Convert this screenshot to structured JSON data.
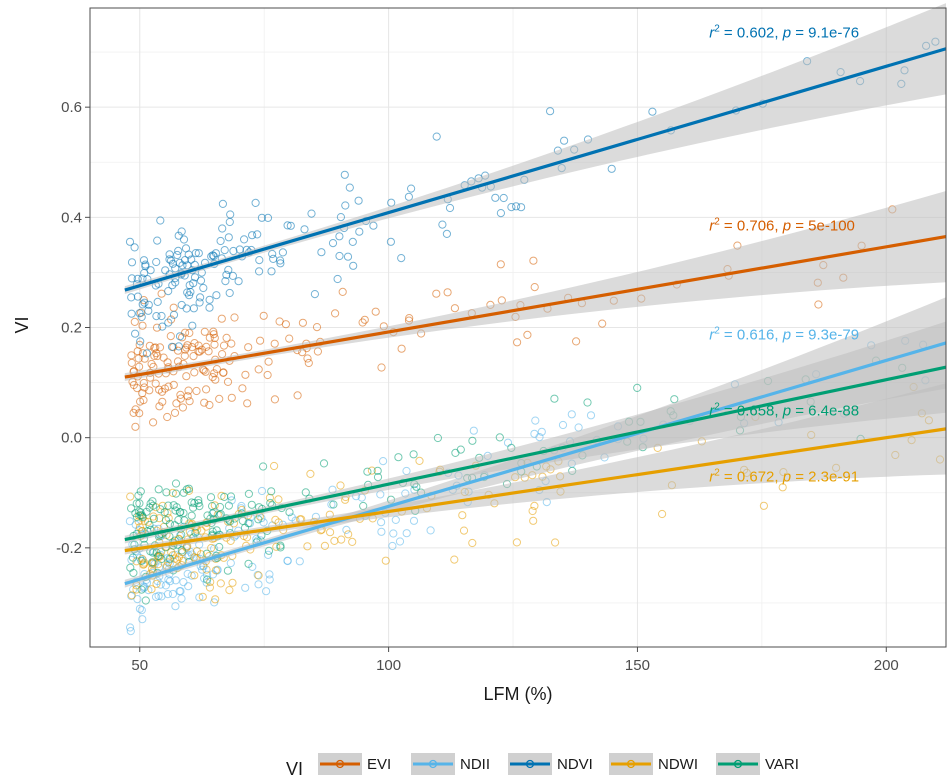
{
  "chart_data": {
    "type": "scatter",
    "xlabel": "LFM (%)",
    "ylabel": "VI",
    "xlim": [
      40,
      212
    ],
    "ylim": [
      -0.38,
      0.78
    ],
    "xticks": [
      50,
      100,
      150,
      200
    ],
    "yticks": [
      -0.2,
      0.0,
      0.2,
      0.4,
      0.6
    ],
    "ytick_labels": [
      "-0.2",
      "0.0",
      "0.2",
      "0.4",
      "0.6"
    ],
    "grid": true,
    "legend": {
      "title": "VI",
      "position": "bottom"
    },
    "series": [
      {
        "name": "EVI",
        "color": "#D55E00",
        "fit": {
          "x": [
            47,
            212
          ],
          "y": [
            0.11,
            0.365
          ]
        },
        "cloud": {
          "center": [
            0.155,
            0.26
          ],
          "spread": [
            0.05,
            0.06
          ]
        },
        "annotation": {
          "r2": "0.706",
          "p": "5e-100",
          "at": [
            160,
            0.376
          ]
        }
      },
      {
        "name": "NDII",
        "color": "#56B4E9",
        "fit": {
          "x": [
            47,
            212
          ],
          "y": [
            -0.265,
            0.172
          ]
        },
        "cloud": {
          "center": [
            -0.24,
            -0.03
          ],
          "spread": [
            0.06,
            0.07
          ]
        },
        "annotation": {
          "r2": "0.616",
          "p": "9.3e-79",
          "at": [
            160,
            0.178
          ]
        }
      },
      {
        "name": "NDVI",
        "color": "#0072B2",
        "fit": {
          "x": [
            47,
            212
          ],
          "y": [
            0.268,
            0.706
          ]
        },
        "cloud": {
          "center": [
            0.3,
            0.5
          ],
          "spread": [
            0.08,
            0.08
          ]
        },
        "annotation": {
          "r2": "0.602",
          "p": "9.1e-76",
          "at": [
            160,
            0.726
          ]
        }
      },
      {
        "name": "NDWI",
        "color": "#E69F00",
        "fit": {
          "x": [
            47,
            212
          ],
          "y": [
            -0.205,
            0.016
          ]
        },
        "cloud": {
          "center": [
            -0.2,
            -0.06
          ],
          "spread": [
            0.03,
            0.04
          ]
        },
        "annotation": {
          "r2": "0.672",
          "p": "2.3e-91",
          "at": [
            160,
            -0.08
          ]
        }
      },
      {
        "name": "VARI",
        "color": "#009E73",
        "fit": {
          "x": [
            47,
            212
          ],
          "y": [
            -0.185,
            0.128
          ]
        },
        "cloud": {
          "center": [
            -0.14,
            0.02
          ],
          "spread": [
            0.06,
            0.05
          ]
        },
        "annotation": {
          "r2": "0.658",
          "p": "6.4e-88",
          "at": [
            160,
            0.04
          ]
        }
      }
    ]
  }
}
